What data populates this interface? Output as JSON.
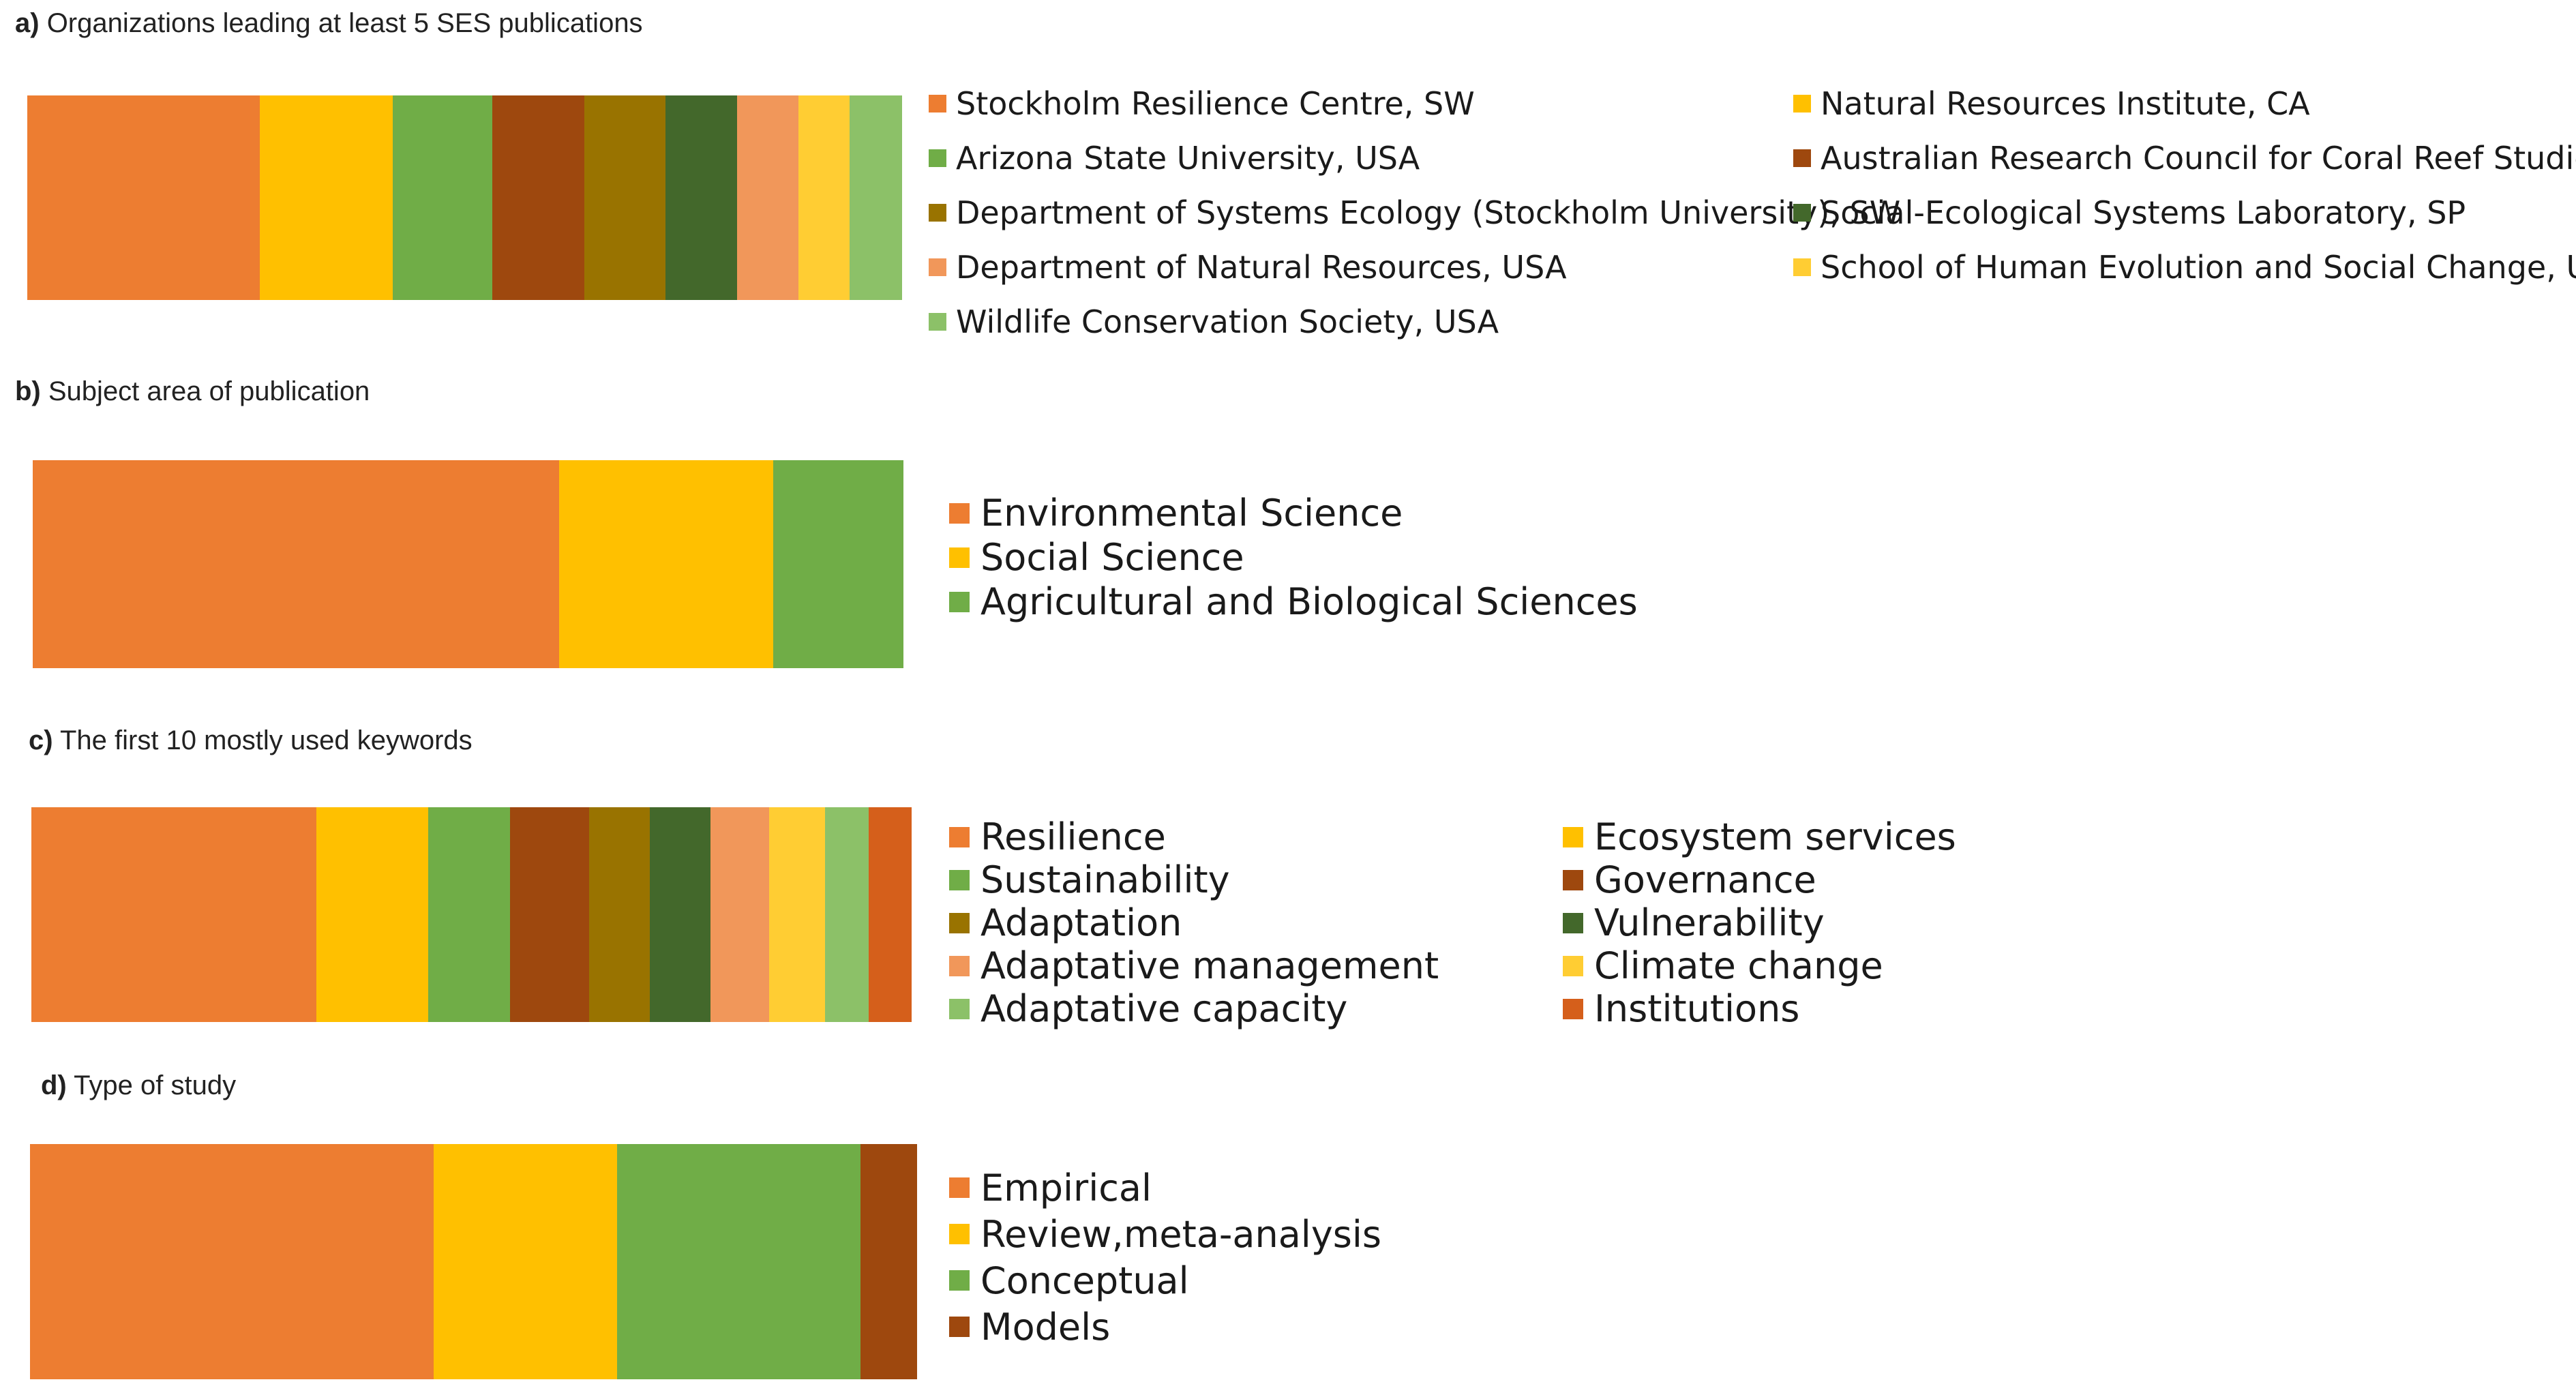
{
  "chart_data": [
    {
      "type": "bar",
      "orientation": "horizontal-stacked",
      "panel": "a",
      "title": "Organizations leading at least 5 SES publications",
      "unit": "share of publications (%)",
      "series": [
        {
          "name": "Stockholm Resilience Centre, SW",
          "value": 26.6,
          "color": "#ED7D31"
        },
        {
          "name": "Natural Resources Institute, CA",
          "value": 15.2,
          "color": "#FFC000"
        },
        {
          "name": "Arizona State University, USA",
          "value": 11.4,
          "color": "#70AD47"
        },
        {
          "name": "Australian Research Council for Coral Reef Studies, AUS",
          "value": 10.5,
          "color": "#9E480E"
        },
        {
          "name": "Department of Systems Ecology (Stockholm University), SW",
          "value": 9.3,
          "color": "#997300"
        },
        {
          "name": "Social-Ecological Systems Laboratory, SP",
          "value": 8.2,
          "color": "#43682B"
        },
        {
          "name": "Department of Natural Resources, USA",
          "value": 7.0,
          "color": "#F1975A"
        },
        {
          "name": "School of Human Evolution and Social Change, USA",
          "value": 5.9,
          "color": "#FFCD33"
        },
        {
          "name": "Wildlife Conservation Society, USA",
          "value": 5.9,
          "color": "#8CC168"
        }
      ]
    },
    {
      "type": "bar",
      "orientation": "horizontal-stacked",
      "panel": "b",
      "title": "Subject area of publication",
      "unit": "share of publications (%)",
      "series": [
        {
          "name": "Environmental Science",
          "value": 60.5,
          "color": "#ED7D31"
        },
        {
          "name": "Social Science",
          "value": 24.6,
          "color": "#FFC000"
        },
        {
          "name": "Agricultural and Biological Sciences",
          "value": 14.9,
          "color": "#70AD47"
        }
      ]
    },
    {
      "type": "bar",
      "orientation": "horizontal-stacked",
      "panel": "c",
      "title": "The first 10  mostly used keywords",
      "unit": "share of keyword occurrences (%)",
      "series": [
        {
          "name": "Resilience",
          "value": 32.4,
          "color": "#ED7D31"
        },
        {
          "name": "Ecosystem services",
          "value": 12.7,
          "color": "#FFC000"
        },
        {
          "name": "Sustainability",
          "value": 9.3,
          "color": "#70AD47"
        },
        {
          "name": "Governance",
          "value": 9.0,
          "color": "#9E480E"
        },
        {
          "name": "Adaptation",
          "value": 6.9,
          "color": "#997300"
        },
        {
          "name": "Vulnerability",
          "value": 6.9,
          "color": "#43682B"
        },
        {
          "name": "Adaptative management",
          "value": 6.7,
          "color": "#F1975A"
        },
        {
          "name": "Climate change",
          "value": 6.3,
          "color": "#FFCD33"
        },
        {
          "name": "Adaptative capacity",
          "value": 5.0,
          "color": "#8CC168"
        },
        {
          "name": "Institutions",
          "value": 4.8,
          "color": "#D55F1B"
        }
      ]
    },
    {
      "type": "bar",
      "orientation": "horizontal-stacked",
      "panel": "d",
      "title": "Type of study",
      "unit": "share of publications (%)",
      "series": [
        {
          "name": "Empirical",
          "value": 45.5,
          "color": "#ED7D31"
        },
        {
          "name": "Review,meta-analysis",
          "value": 20.7,
          "color": "#FFC000"
        },
        {
          "name": "Conceptual",
          "value": 27.5,
          "color": "#70AD47"
        },
        {
          "name": "Models",
          "value": 6.3,
          "color": "#9E480E"
        }
      ]
    }
  ],
  "panels": {
    "a": {
      "letter": "a)",
      "title": " Organizations leading at least 5 SES publications"
    },
    "b": {
      "letter": "b)",
      "title": " Subject area of publication"
    },
    "c": {
      "letter": "c)",
      "title": " The first 10  mostly used keywords"
    },
    "d": {
      "letter": "d)",
      "title": " Type of study"
    }
  }
}
